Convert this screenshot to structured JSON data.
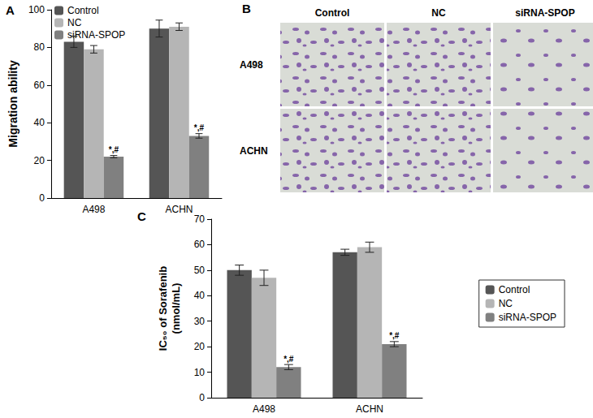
{
  "chart_data": [
    {
      "type": "bar",
      "title": "A",
      "y_label": "Migration ability",
      "categories": [
        "A498",
        "ACHN"
      ],
      "series": [
        {
          "name": "Control",
          "color": "#555555",
          "values": [
            83,
            90
          ],
          "errors": [
            3,
            4.5
          ]
        },
        {
          "name": "NC",
          "color": "#b5b5b5",
          "values": [
            79,
            91
          ],
          "errors": [
            2,
            2
          ]
        },
        {
          "name": "siRNA-SPOP",
          "color": "#808080",
          "values": [
            22,
            33
          ],
          "errors": [
            0.6,
            1.2
          ],
          "annotations": [
            "*,#",
            "*,#"
          ]
        }
      ],
      "ylim": [
        0,
        100
      ],
      "yticks": [
        0,
        20,
        40,
        60,
        80,
        100
      ],
      "grid": false,
      "legend": "upper left"
    },
    {
      "type": "bar",
      "title": "C",
      "y_label": "IC₅₀ of Sorafenib\n(nmol/mL)",
      "categories": [
        "A498",
        "ACHN"
      ],
      "series": [
        {
          "name": "Control",
          "color": "#555555",
          "values": [
            50,
            57
          ],
          "errors": [
            2,
            1.2
          ]
        },
        {
          "name": "NC",
          "color": "#b5b5b5",
          "values": [
            47,
            59
          ],
          "errors": [
            3,
            2
          ]
        },
        {
          "name": "siRNA-SPOP",
          "color": "#808080",
          "values": [
            12,
            21
          ],
          "errors": [
            1,
            1
          ],
          "annotations": [
            "*,#",
            "*,#"
          ]
        }
      ],
      "ylim": [
        0,
        70
      ],
      "yticks": [
        0,
        10,
        20,
        30,
        40,
        50,
        60,
        70
      ],
      "grid": false,
      "legend": "right"
    }
  ],
  "panel_b": {
    "title": "B",
    "columns": [
      "Control",
      "NC",
      "siRNA-SPOP"
    ],
    "rows": [
      "A498",
      "ACHN"
    ]
  }
}
